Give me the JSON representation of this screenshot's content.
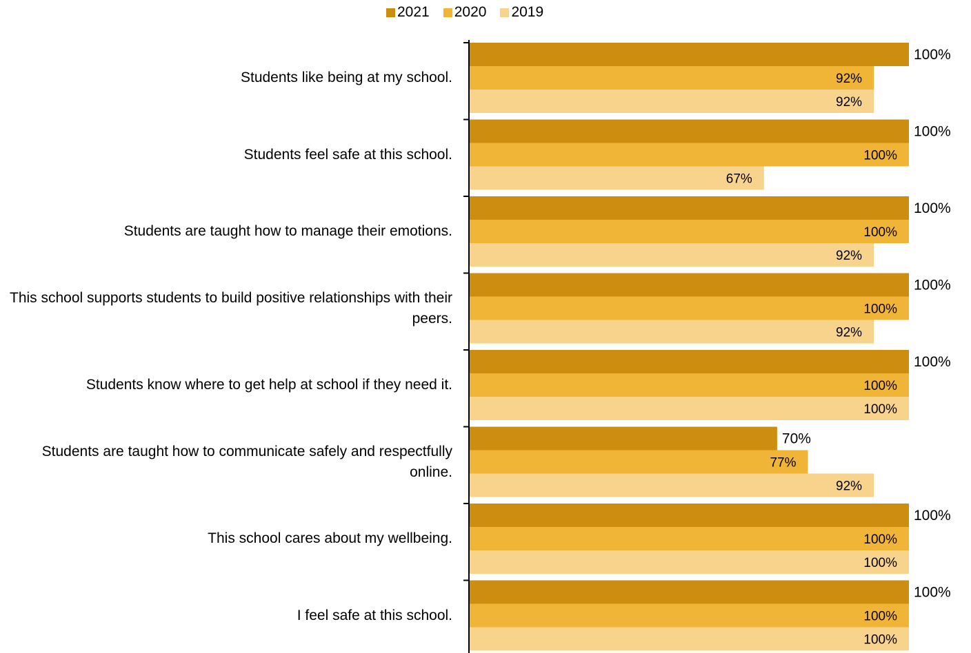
{
  "chart_data": {
    "type": "bar",
    "orientation": "horizontal",
    "title": "",
    "xlabel": "",
    "ylabel": "",
    "xlim": [
      0,
      100
    ],
    "value_suffix": "%",
    "grid": false,
    "legend_position": "top",
    "categories": [
      "Students like being at my school.",
      "Students feel safe at this school.",
      "Students are taught how to manage their emotions.",
      "This school supports students to build positive relationships with their peers.",
      "Students know where to get help at school if they need it.",
      "Students are taught how to communicate safely and respectfully online.",
      "This school cares about my wellbeing.",
      "I feel safe at this school."
    ],
    "series": [
      {
        "name": "2021",
        "color": "#cd8e0f",
        "values": [
          100,
          100,
          100,
          100,
          100,
          70,
          100,
          100
        ]
      },
      {
        "name": "2020",
        "color": "#f0b437",
        "values": [
          92,
          100,
          100,
          100,
          100,
          77,
          100,
          100
        ]
      },
      {
        "name": "2019",
        "color": "#f7d38b",
        "values": [
          92,
          67,
          92,
          92,
          100,
          92,
          100,
          100
        ]
      }
    ]
  }
}
